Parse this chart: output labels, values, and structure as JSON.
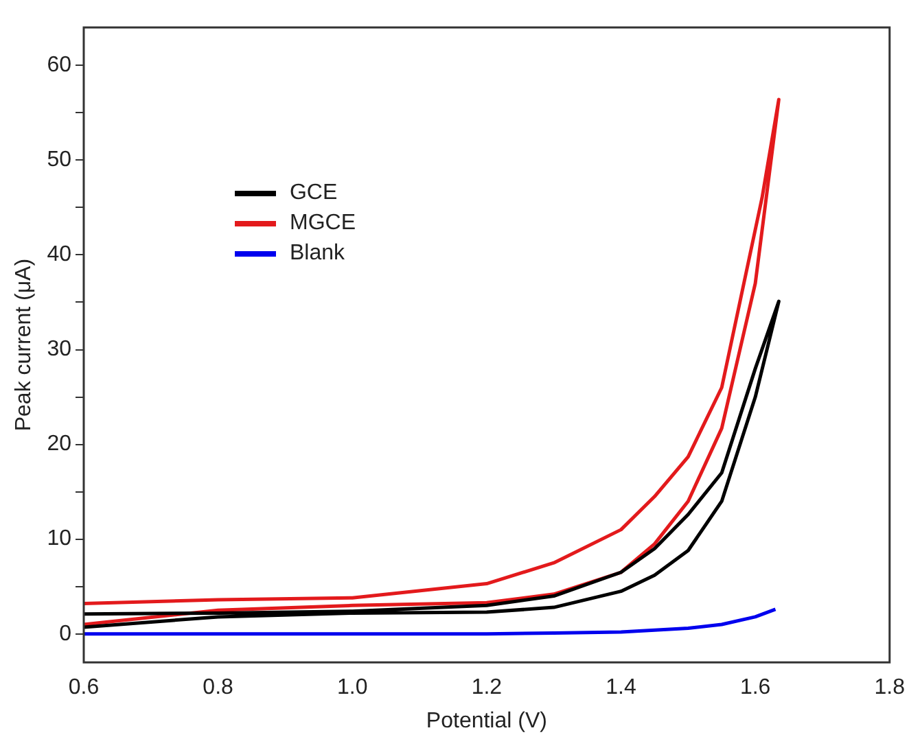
{
  "chart_data": {
    "type": "line",
    "xlabel": "Potential (V)",
    "ylabel": "Peak current (μA)",
    "xlim": [
      0.6,
      1.8
    ],
    "xticks": [
      0.6,
      0.8,
      {
        "value": 1,
        "label": "1.0"
      },
      1.2,
      1.4,
      1.6,
      1.8
    ],
    "ylim": [
      -3,
      64
    ],
    "yticks": [
      0,
      {
        "value": 5,
        "label": null
      },
      10,
      {
        "value": 15,
        "label": null
      },
      20,
      {
        "value": 25,
        "label": null
      },
      30,
      {
        "value": 35,
        "label": null
      },
      40,
      {
        "value": 45,
        "label": null
      },
      50,
      {
        "value": 55,
        "label": null
      },
      60
    ],
    "grid": false,
    "legend": "top left",
    "marker": "none",
    "line_style": "solid",
    "series": [
      {
        "name": "GCE",
        "color": "#000000",
        "x": [
          0.6,
          0.8,
          1.0,
          1.2,
          1.3,
          1.4,
          1.45,
          1.5,
          1.55,
          1.6,
          1.635,
          1.6,
          1.55,
          1.5,
          1.45,
          1.4,
          1.3,
          1.2,
          1.0,
          0.8,
          0.6
        ],
        "values": [
          0.7,
          1.8,
          2.2,
          2.3,
          2.8,
          4.5,
          6.2,
          8.8,
          14,
          25,
          35.1,
          28,
          17,
          12.6,
          9,
          6.5,
          4,
          3,
          2.4,
          2.2,
          2.1
        ]
      },
      {
        "name": "MGCE",
        "color": "#e31a1c",
        "x": [
          0.6,
          0.8,
          1.0,
          1.2,
          1.3,
          1.4,
          1.45,
          1.5,
          1.55,
          1.6,
          1.635,
          1.61,
          1.55,
          1.5,
          1.45,
          1.4,
          1.3,
          1.2,
          1.0,
          0.8,
          0.6
        ],
        "values": [
          1.0,
          2.5,
          3.0,
          3.3,
          4.2,
          6.5,
          9.5,
          14,
          21.7,
          37,
          56.4,
          46,
          26,
          18.7,
          14.5,
          11,
          7.5,
          5.3,
          3.8,
          3.6,
          3.2
        ]
      },
      {
        "name": "Blank",
        "color": "#0000ee",
        "x": [
          0.6,
          0.8,
          1.0,
          1.2,
          1.3,
          1.4,
          1.5,
          1.55,
          1.6,
          1.63
        ],
        "values": [
          0,
          0,
          0,
          0,
          0.1,
          0.2,
          0.6,
          1.0,
          1.8,
          2.6
        ]
      }
    ]
  }
}
